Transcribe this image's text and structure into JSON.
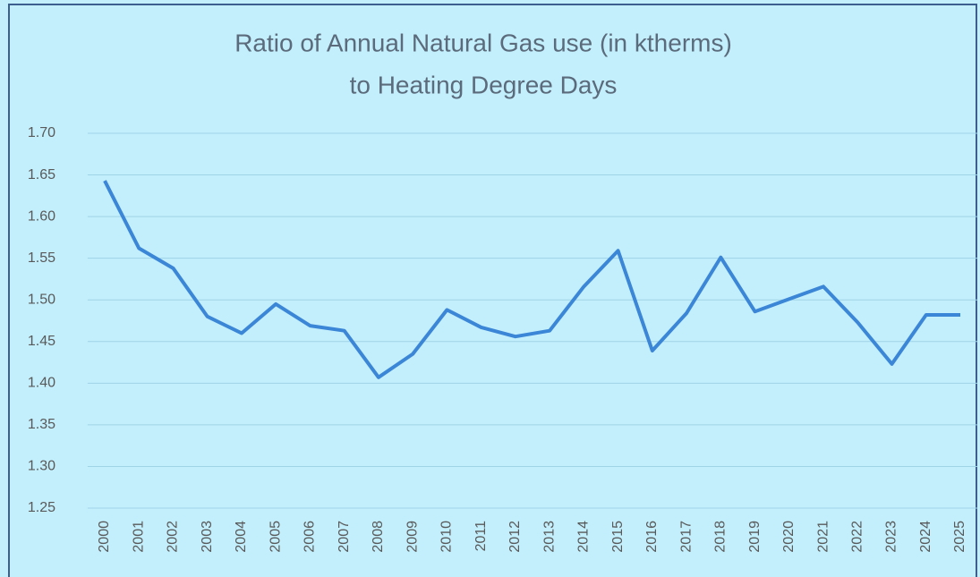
{
  "chart_data": {
    "type": "line",
    "title": [
      "Ratio of Annual Natural Gas use (in ktherms)",
      "to Heating Degree Days"
    ],
    "categories": [
      "2000",
      "2001",
      "2002",
      "2003",
      "2004",
      "2005",
      "2006",
      "2007",
      "2008",
      "2009",
      "2010",
      "2011",
      "2012",
      "2013",
      "2014",
      "2015",
      "2016",
      "2017",
      "2018",
      "2019",
      "2020",
      "2021",
      "2022",
      "2023",
      "2024",
      "2025"
    ],
    "series": [
      {
        "color": "#3b86d6",
        "values": [
          1.643,
          1.562,
          1.538,
          1.48,
          1.46,
          1.495,
          1.469,
          1.463,
          1.407,
          1.435,
          1.488,
          1.467,
          1.456,
          1.463,
          1.516,
          1.559,
          1.439,
          1.484,
          1.551,
          1.486,
          1.501,
          1.516,
          1.473,
          1.423,
          1.482,
          1.482
        ]
      }
    ],
    "ylim": [
      1.25,
      1.7
    ],
    "yticks": [
      1.25,
      {
        "value": 1.3,
        "label": "1.30"
      },
      1.35,
      {
        "value": 1.4,
        "label": "1.40"
      },
      1.45,
      {
        "value": 1.5,
        "label": "1.50"
      },
      1.55,
      {
        "value": 1.6,
        "label": "1.60"
      },
      1.65,
      {
        "value": 1.7,
        "label": "1.70"
      }
    ],
    "grid": true
  }
}
